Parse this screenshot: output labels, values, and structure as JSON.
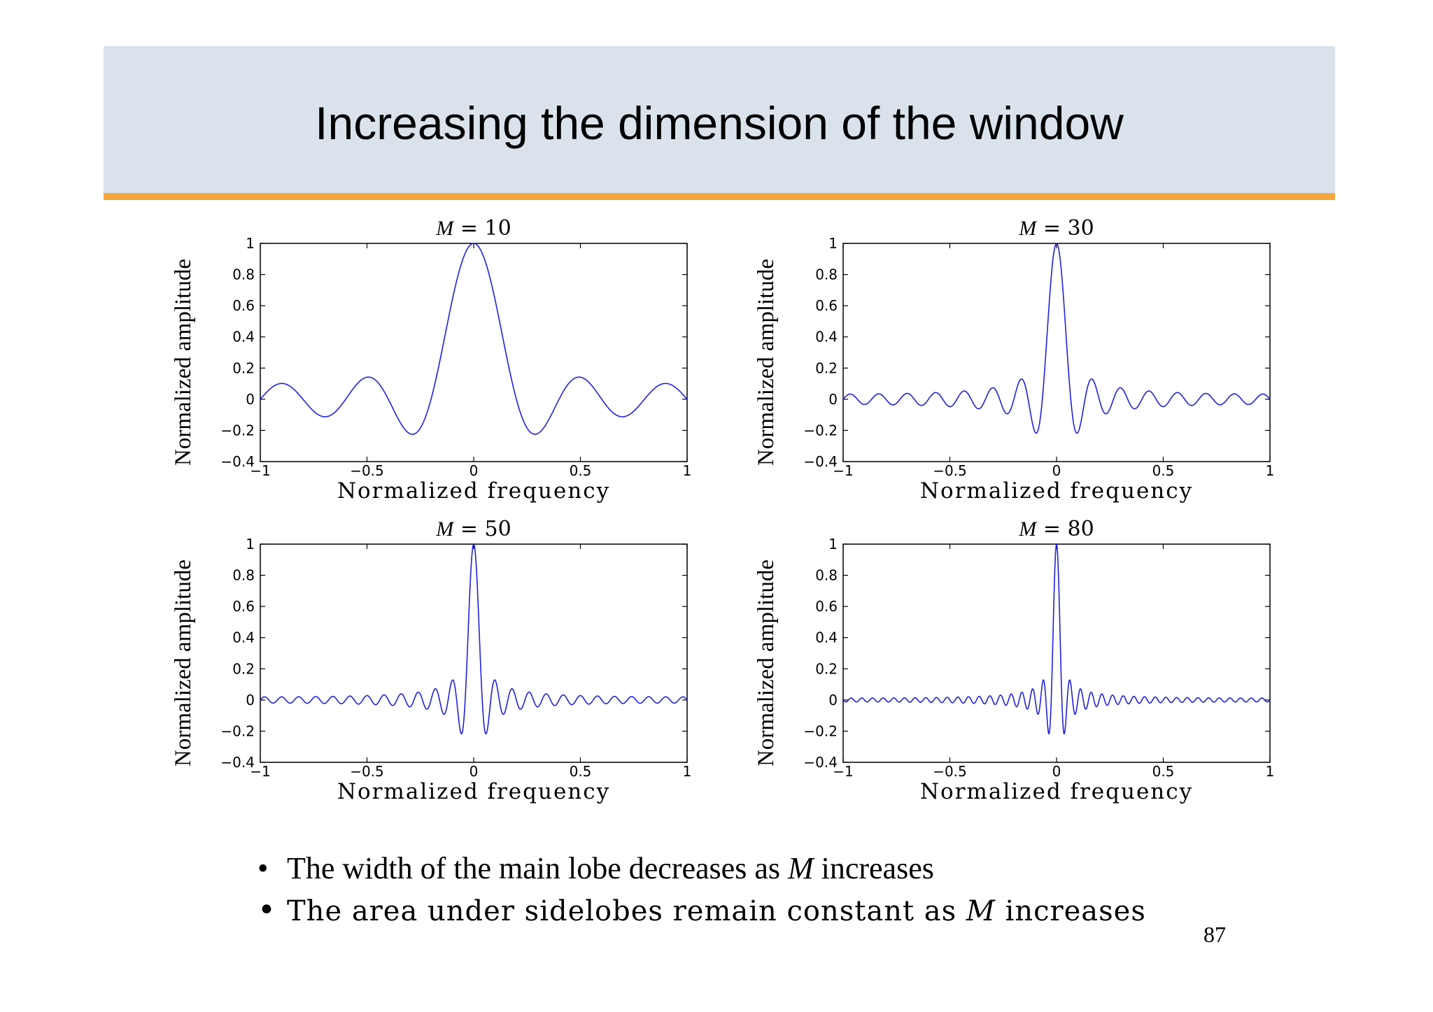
{
  "slide": {
    "title": "Increasing the dimension of the window",
    "page_number": "87",
    "bullets": [
      {
        "pre": "The width of the main lobe decreases as ",
        "var": "M",
        "post": " increases"
      },
      {
        "pre": "The area under sidelobes remain constant as ",
        "var": "M",
        "post": " increases"
      }
    ]
  },
  "colors": {
    "header_bg": "#dae3ec",
    "header_rule": "#f5a73a",
    "line": "#2020e0"
  },
  "chart_data": [
    {
      "type": "line",
      "title_var": "M",
      "title_rest": " = 10",
      "M": 10,
      "xlabel": "Normalized frequency",
      "ylabel": "Normalized amplitude",
      "xlim": [
        -1,
        1
      ],
      "ylim": [
        -0.4,
        1
      ],
      "xticks": [
        "−1",
        "−0.5",
        "0",
        "0.5",
        "1"
      ],
      "yticks": [
        "−0.4",
        "−0.2",
        "0",
        "0.2",
        "0.4",
        "0.6",
        "0.8",
        "1"
      ]
    },
    {
      "type": "line",
      "title_var": "M",
      "title_rest": " = 30",
      "M": 30,
      "xlabel": "Normalized frequency",
      "ylabel": "Normalized amplitude",
      "xlim": [
        -1,
        1
      ],
      "ylim": [
        -0.4,
        1
      ],
      "xticks": [
        "−1",
        "−0.5",
        "0",
        "0.5",
        "1"
      ],
      "yticks": [
        "−0.4",
        "−0.2",
        "0",
        "0.2",
        "0.4",
        "0.6",
        "0.8",
        "1"
      ]
    },
    {
      "type": "line",
      "title_var": "M",
      "title_rest": " = 50",
      "M": 50,
      "xlabel": "Normalized frequency",
      "ylabel": "Normalized amplitude",
      "xlim": [
        -1,
        1
      ],
      "ylim": [
        -0.4,
        1
      ],
      "xticks": [
        "−1",
        "−0.5",
        "0",
        "0.5",
        "1"
      ],
      "yticks": [
        "−0.4",
        "−0.2",
        "0",
        "0.2",
        "0.4",
        "0.6",
        "0.8",
        "1"
      ]
    },
    {
      "type": "line",
      "title_var": "M",
      "title_rest": " = 80",
      "M": 80,
      "xlabel": "Normalized frequency",
      "ylabel": "Normalized amplitude",
      "xlim": [
        -1,
        1
      ],
      "ylim": [
        -0.4,
        1
      ],
      "xticks": [
        "−1",
        "−0.5",
        "0",
        "0.5",
        "1"
      ],
      "yticks": [
        "−0.4",
        "−0.2",
        "0",
        "0.2",
        "0.4",
        "0.6",
        "0.8",
        "1"
      ]
    }
  ]
}
